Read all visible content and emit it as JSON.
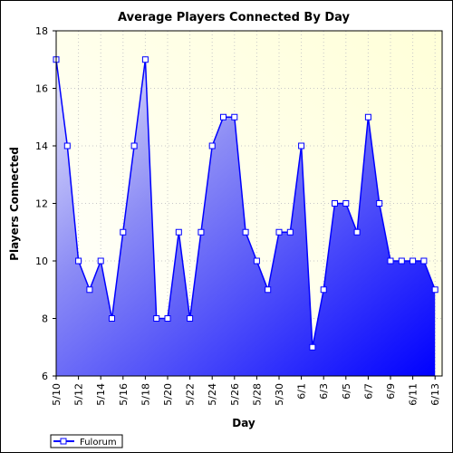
{
  "chart_data": {
    "type": "area",
    "title": "Average Players Connected By Day",
    "xlabel": "Day",
    "ylabel": "Players Connected",
    "ylim": [
      6,
      18
    ],
    "y_ticks": [
      "6",
      "8",
      "10",
      "12",
      "14",
      "16",
      "18"
    ],
    "x_tick_labels": [
      "5/10",
      "5/12",
      "5/14",
      "5/16",
      "5/18",
      "5/20",
      "5/22",
      "5/24",
      "5/26",
      "5/28",
      "5/30",
      "6/1",
      "6/3",
      "6/5",
      "6/7",
      "6/9",
      "6/11",
      "6/13"
    ],
    "categories": [
      "5/10",
      "5/11",
      "5/12",
      "5/13",
      "5/14",
      "5/15",
      "5/16",
      "5/17",
      "5/18",
      "5/19",
      "5/20",
      "5/21",
      "5/22",
      "5/23",
      "5/24",
      "5/25",
      "5/26",
      "5/27",
      "5/28",
      "5/29",
      "5/30",
      "5/31",
      "6/1",
      "6/2",
      "6/3",
      "6/4",
      "6/5",
      "6/6",
      "6/7",
      "6/8",
      "6/9",
      "6/10",
      "6/11",
      "6/12",
      "6/13"
    ],
    "series": [
      {
        "name": "Fulorum",
        "values": [
          17,
          14,
          10,
          9,
          10,
          8,
          11,
          14,
          17,
          8,
          8,
          11,
          8,
          11,
          14,
          15,
          15,
          11,
          10,
          9,
          11,
          11,
          14,
          7,
          9,
          12,
          12,
          11,
          15,
          12,
          10,
          10,
          10,
          10,
          9
        ]
      }
    ],
    "grid": true,
    "legend": "bottom-left",
    "colors": {
      "line": "#0000ff",
      "fill_light": "#e6e6fa",
      "fill_dark": "#0000ff",
      "plot_bg_light": "#ffffdd",
      "plot_bg_white": "#ffffff",
      "marker_fill": "#ffffff"
    }
  }
}
